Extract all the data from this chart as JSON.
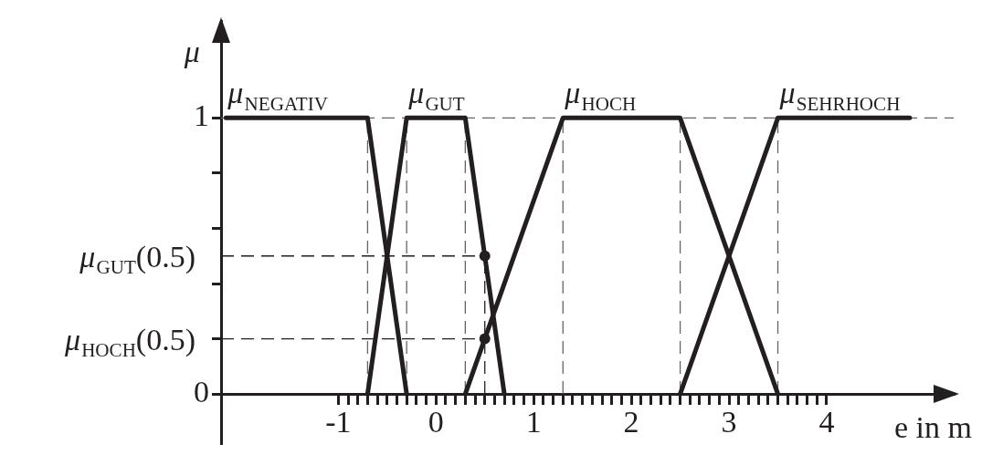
{
  "chart_data": {
    "type": "line",
    "xlabel": "e in m",
    "ylabel": "μ",
    "xlim": [
      -2.2,
      5.3
    ],
    "ylim": [
      -0.18,
      1.35
    ],
    "xticks": [
      {
        "value": -1,
        "label": "-1"
      },
      {
        "value": -0.9,
        "label": null
      },
      {
        "value": -0.8,
        "label": null
      },
      {
        "value": -0.7,
        "label": null
      },
      {
        "value": -0.6,
        "label": null
      },
      {
        "value": -0.5,
        "label": null
      },
      {
        "value": -0.4,
        "label": null
      },
      {
        "value": -0.3,
        "label": null
      },
      {
        "value": -0.2,
        "label": null
      },
      {
        "value": -0.1,
        "label": null
      },
      {
        "value": 0,
        "label": "0"
      },
      {
        "value": 0.1,
        "label": null
      },
      {
        "value": 0.2,
        "label": null
      },
      {
        "value": 0.3,
        "label": null
      },
      {
        "value": 0.4,
        "label": null
      },
      {
        "value": 0.5,
        "label": null
      },
      {
        "value": 0.6,
        "label": null
      },
      {
        "value": 0.7,
        "label": null
      },
      {
        "value": 0.8,
        "label": null
      },
      {
        "value": 0.9,
        "label": null
      },
      {
        "value": 1,
        "label": "1"
      },
      {
        "value": 1.1,
        "label": null
      },
      {
        "value": 1.2,
        "label": null
      },
      {
        "value": 1.3,
        "label": null
      },
      {
        "value": 1.4,
        "label": null
      },
      {
        "value": 1.5,
        "label": null
      },
      {
        "value": 1.6,
        "label": null
      },
      {
        "value": 1.7,
        "label": null
      },
      {
        "value": 1.8,
        "label": null
      },
      {
        "value": 1.9,
        "label": null
      },
      {
        "value": 2,
        "label": "2"
      },
      {
        "value": 2.1,
        "label": null
      },
      {
        "value": 2.2,
        "label": null
      },
      {
        "value": 2.3,
        "label": null
      },
      {
        "value": 2.4,
        "label": null
      },
      {
        "value": 2.5,
        "label": null
      },
      {
        "value": 2.6,
        "label": null
      },
      {
        "value": 2.7,
        "label": null
      },
      {
        "value": 2.8,
        "label": null
      },
      {
        "value": 2.9,
        "label": null
      },
      {
        "value": 3,
        "label": "3"
      },
      {
        "value": 3.1,
        "label": null
      },
      {
        "value": 3.2,
        "label": null
      },
      {
        "value": 3.3,
        "label": null
      },
      {
        "value": 3.4,
        "label": null
      },
      {
        "value": 3.5,
        "label": null
      },
      {
        "value": 3.6,
        "label": null
      },
      {
        "value": 3.7,
        "label": null
      },
      {
        "value": 3.8,
        "label": null
      },
      {
        "value": 3.9,
        "label": null
      },
      {
        "value": 4,
        "label": "4"
      }
    ],
    "yticks": [
      0,
      {
        "value": 0.2,
        "label": null
      },
      {
        "value": 0.4,
        "label": null
      },
      {
        "value": 0.6,
        "label": null
      },
      {
        "value": 0.8,
        "label": null
      },
      1
    ],
    "series": [
      {
        "name": "μ$_{NEGATIV}$",
        "color": "#231f20",
        "x": [
          -2.15,
          -0.7,
          -0.3
        ],
        "values": [
          1,
          1,
          0
        ]
      },
      {
        "name": "μ$_{GUT}$",
        "color": "#231f20",
        "x": [
          -0.7,
          -0.3,
          0.3,
          0.7
        ],
        "values": [
          0,
          1,
          1,
          0
        ]
      },
      {
        "name": "μ$_{HOCH}$",
        "color": "#231f20",
        "x": [
          0.3,
          1.3,
          2.5,
          3.5
        ],
        "values": [
          0,
          1,
          1,
          0
        ]
      },
      {
        "name": "μ$_{SEHRHOCH}$",
        "color": "#231f20",
        "x": [
          2.5,
          3.5,
          4.85
        ],
        "values": [
          0,
          1,
          1
        ]
      },
      {
        "type": "scatter",
        "color": "#231f20",
        "marker": "circle",
        "x": [
          0.5,
          0.5
        ],
        "values": [
          0.5,
          0.2
        ]
      }
    ],
    "ref_lines": [
      {
        "axis": "x",
        "value": -0.7,
        "color": "#666666",
        "line_style": "dashed"
      },
      {
        "axis": "x",
        "value": -0.3,
        "color": "#666666",
        "line_style": "dashed"
      },
      {
        "axis": "x",
        "value": 0.3,
        "color": "#666666",
        "line_style": "dashed"
      },
      {
        "axis": "x",
        "value": 0.5,
        "color": "#231f20",
        "line_style": "dashed"
      },
      {
        "axis": "x",
        "value": 1.3,
        "color": "#666666",
        "line_style": "dashed"
      },
      {
        "axis": "x",
        "value": 2.5,
        "color": "#666666",
        "line_style": "dashed"
      },
      {
        "axis": "x",
        "value": 3.5,
        "color": "#666666",
        "line_style": "dashed"
      },
      {
        "axis": "y",
        "value": 1,
        "color": "#666666",
        "line_style": "dashed"
      },
      {
        "axis": "y",
        "value": 0.5,
        "label": "μ$_{GUT}$(0.5)",
        "color": "#231f20",
        "line_style": "dashed"
      },
      {
        "axis": "y",
        "value": 0.2,
        "label": "μ$_{HOCH}$(0.5)",
        "color": "#231f20",
        "line_style": "dashed"
      }
    ],
    "marker": "none",
    "line_style": "solid"
  }
}
